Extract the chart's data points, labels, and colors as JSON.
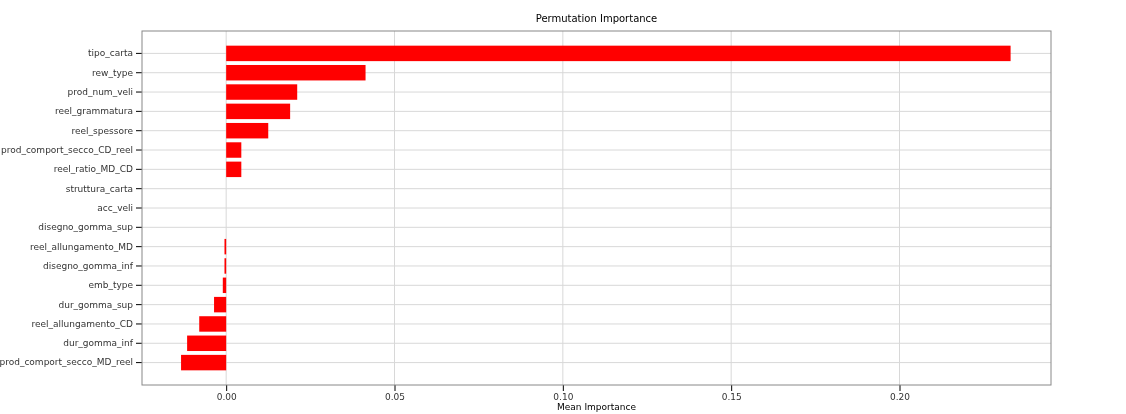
{
  "chart_data": {
    "type": "bar",
    "orientation": "horizontal",
    "title": "Permutation Importance",
    "xlabel": "Mean Importance",
    "categories": [
      "tipo_carta",
      "rew_type",
      "prod_num_veli",
      "reel_grammatura",
      "reel_spessore",
      "prod_comport_secco_CD_reel",
      "reel_ratio_MD_CD",
      "struttura_carta",
      "acc_veli",
      "disegno_gomma_sup",
      "reel_allungamento_MD",
      "disegno_gomma_inf",
      "emb_type",
      "dur_gomma_sup",
      "reel_allungamento_CD",
      "dur_gomma_inf",
      "prod_comport_secco_MD_reel"
    ],
    "values": [
      0.233,
      0.0414,
      0.0211,
      0.019,
      0.0125,
      0.0045,
      0.0045,
      0,
      0,
      0,
      -0.0005,
      -0.0005,
      -0.001,
      -0.0036,
      -0.008,
      -0.0116,
      -0.0134
    ],
    "color": "#ff0000",
    "xlim": [
      -0.025,
      0.245
    ],
    "xticks": [
      {
        "value": 0,
        "label": "0.00"
      },
      0.05,
      {
        "value": 0.1,
        "label": "0.10"
      },
      0.15,
      {
        "value": 0.2,
        "label": "0.20"
      }
    ],
    "grid": true
  }
}
